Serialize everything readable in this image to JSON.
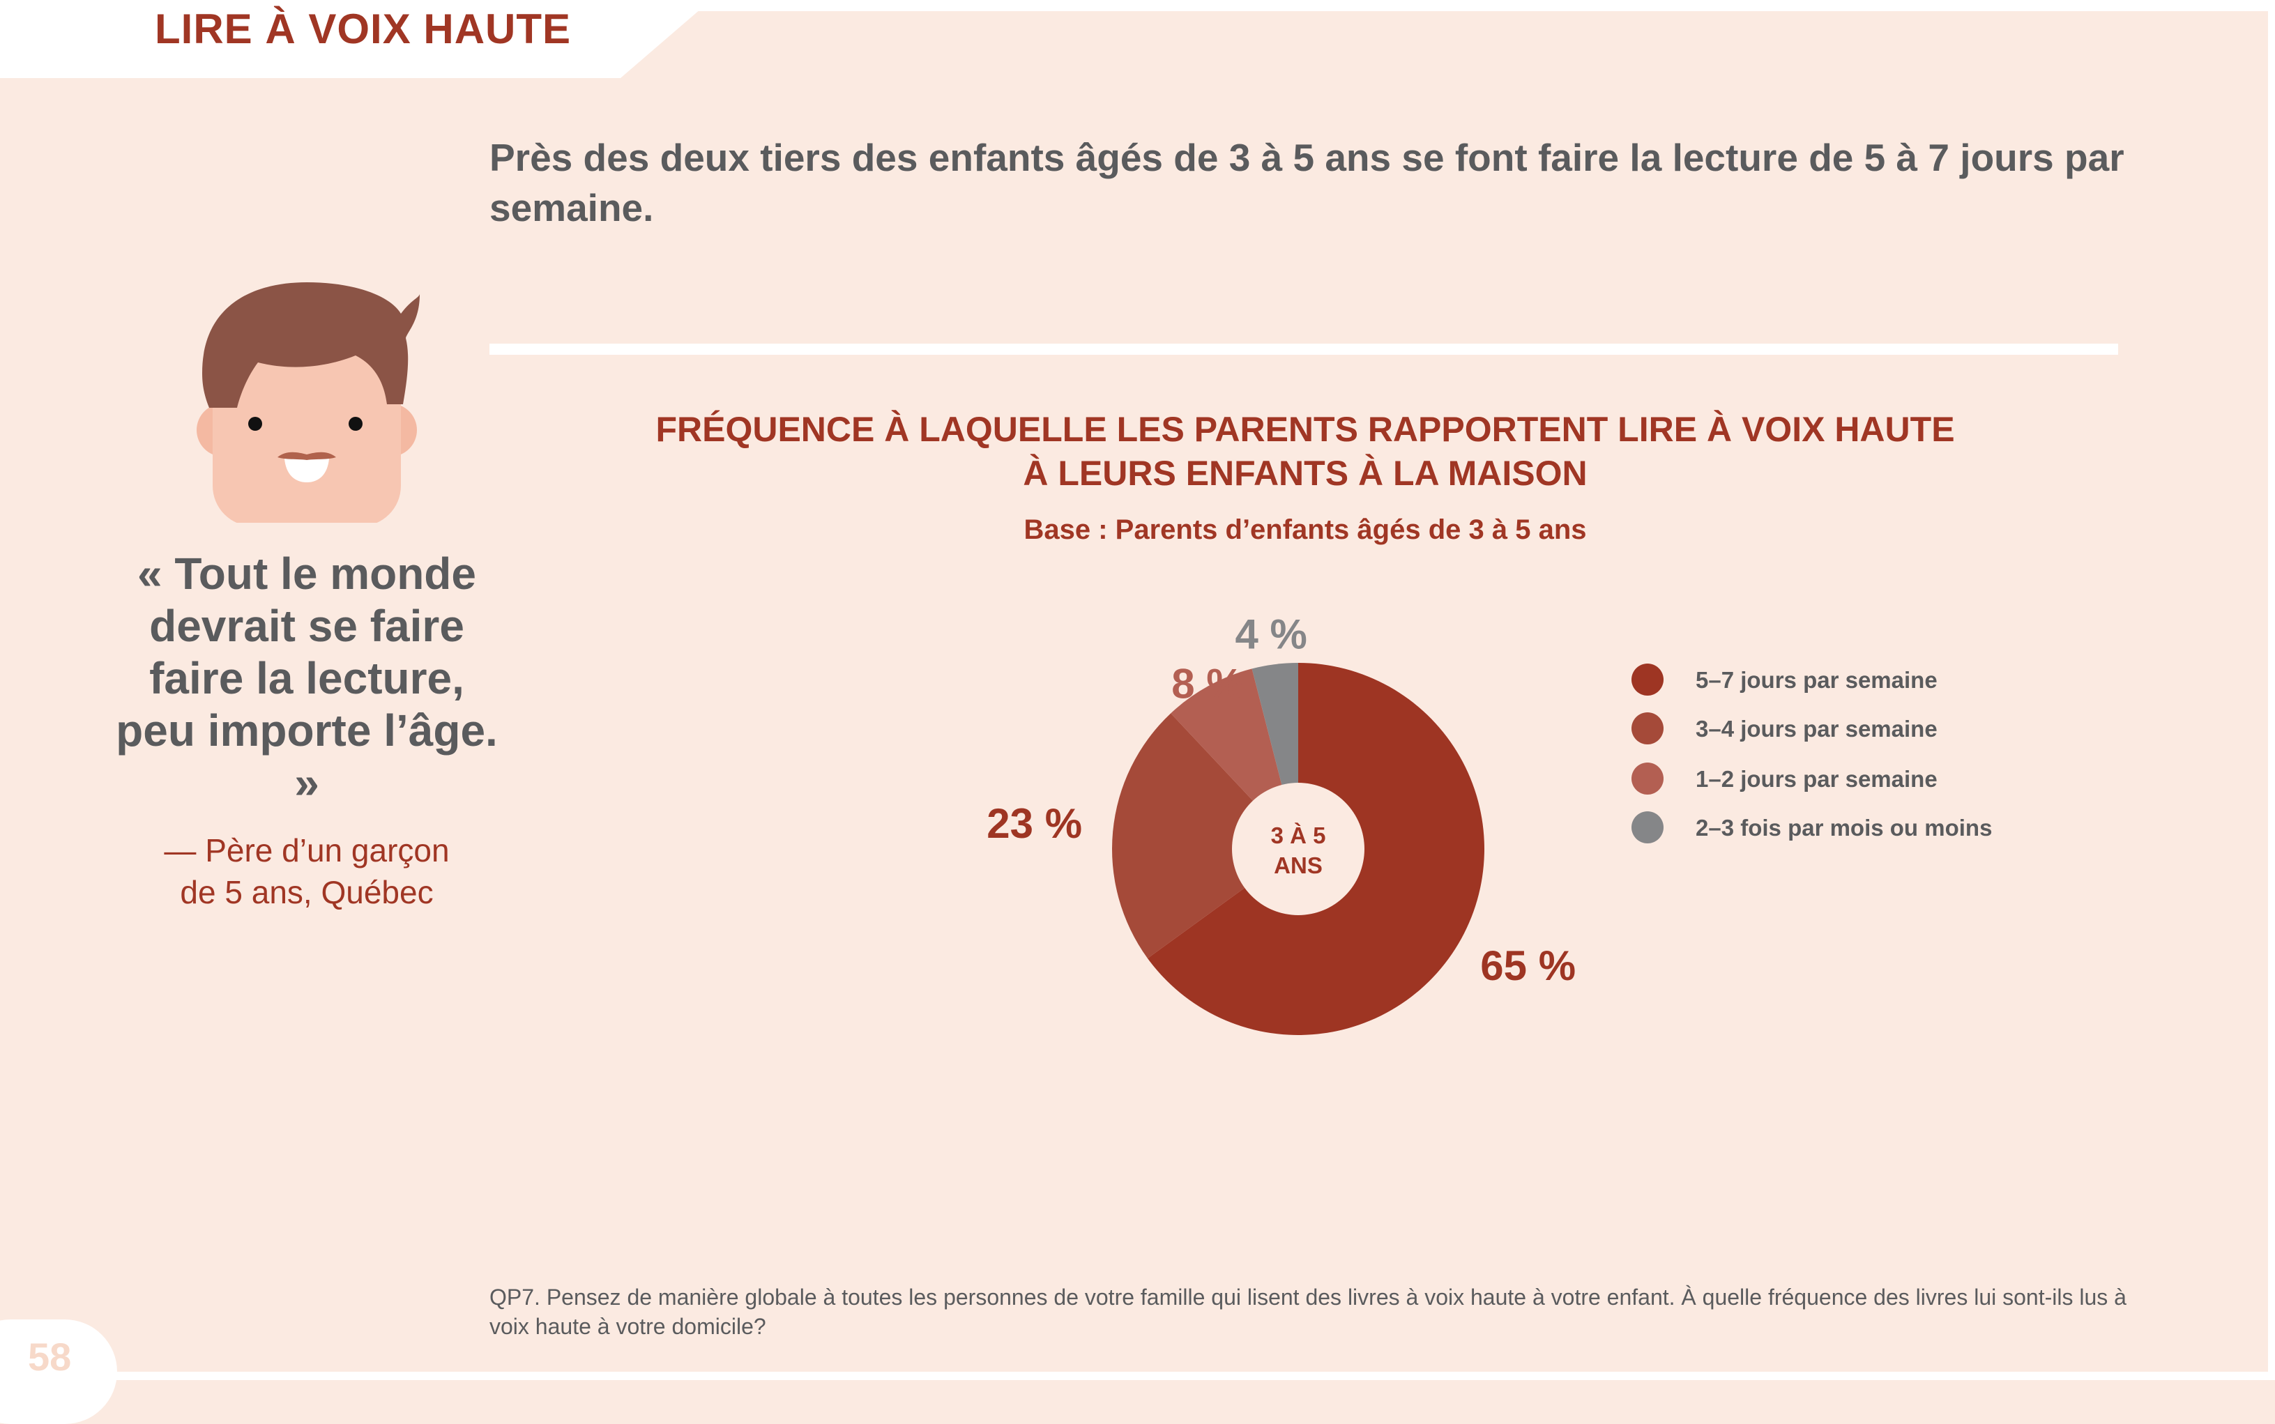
{
  "header": {
    "title": "LIRE À VOIX HAUTE"
  },
  "headline": "Près des deux tiers des enfants âgés de 3 à 5 ans se font faire la lecture de 5 à 7 jours par semaine.",
  "quote": {
    "text": "« Tout le monde devrait se faire faire la lecture, peu importe l’âge. »",
    "attribution_line1": "— Père d’un garçon",
    "attribution_line2": "de 5 ans, Québec"
  },
  "chart_data": {
    "type": "pie",
    "title_line1": "FRÉQUENCE À LAQUELLE LES PARENTS RAPPORTENT LIRE À VOIX HAUTE",
    "title_line2": "À LEURS ENFANTS À LA MAISON",
    "subtitle": "Base : Parents d’enfants âgés de 3  à 5 ans",
    "center_label_line1": "3 À 5",
    "center_label_line2": "ANS",
    "legend_position": "right",
    "categories": [
      "5–7 jours par semaine",
      "3–4 jours par semaine",
      "1–2 jours par semaine",
      "2–3 fois par mois ou moins"
    ],
    "values": [
      65,
      23,
      8,
      4
    ],
    "value_labels": [
      "65 %",
      "23 %",
      "8 %",
      "4 %"
    ],
    "colors": [
      "#9e3523",
      "#a54a39",
      "#b35f52",
      "#858688"
    ]
  },
  "footnote": "QP7. Pensez de manière globale à toutes les personnes de votre famille qui lisent des livres à voix haute à votre enfant. À quelle fréquence des livres lui sont-ils lus à voix haute à votre domicile?",
  "page_number": "58"
}
